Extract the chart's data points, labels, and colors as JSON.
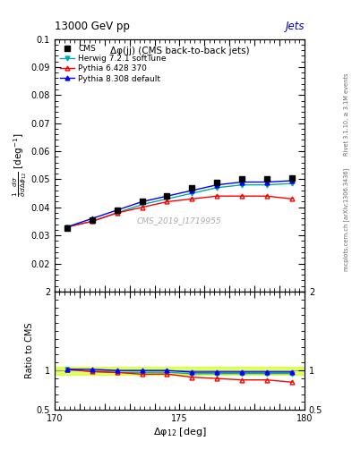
{
  "title_main": "13000 GeV pp",
  "title_right": "Jets",
  "plot_title": "Δφ(jj) (CMS back-to-back jets)",
  "xlabel": "Δφ$_{12}$ [deg]",
  "ylabel_main": "$\\frac{1}{\\bar{\\sigma}}\\frac{d\\sigma}{d\\Delta\\phi_{12}}$ [deg$^{-1}$]",
  "ylabel_ratio": "Ratio to CMS",
  "right_label_top": "Rivet 3.1.10, ≥ 3.1M events",
  "right_label_bottom": "mcplots.cern.ch [arXiv:1306.3436]",
  "watermark": "CMS_2019_I1719955",
  "xmin": 170,
  "xmax": 180,
  "ymin_main": 0.01,
  "ymax_main": 0.1,
  "ymin_ratio": 0.5,
  "ymax_ratio": 2.0,
  "x_data": [
    170.5,
    171.5,
    172.5,
    173.5,
    174.5,
    175.5,
    176.5,
    177.5,
    178.5,
    179.5
  ],
  "cms_data": [
    0.0325,
    0.0355,
    0.039,
    0.042,
    0.044,
    0.047,
    0.049,
    0.05,
    0.05,
    0.0505
  ],
  "herwig_data": [
    0.033,
    0.035,
    0.038,
    0.041,
    0.043,
    0.045,
    0.047,
    0.048,
    0.048,
    0.0485
  ],
  "pythia6_data": [
    0.033,
    0.035,
    0.038,
    0.04,
    0.042,
    0.043,
    0.044,
    0.044,
    0.044,
    0.043
  ],
  "pythia8_data": [
    0.033,
    0.036,
    0.039,
    0.042,
    0.044,
    0.046,
    0.048,
    0.049,
    0.049,
    0.0495
  ],
  "cms_color": "#000000",
  "herwig_color": "#00AAAA",
  "pythia6_color": "#FF0000",
  "pythia8_color": "#0000FF",
  "band_color": "#CCFF00",
  "band_alpha": 0.6,
  "legend_labels": [
    "CMS",
    "Herwig 7.2.1 softTune",
    "Pythia 6.428 370",
    "Pythia 8.308 default"
  ],
  "yticks_main": [
    0.01,
    0.02,
    0.03,
    0.04,
    0.05,
    0.06,
    0.07,
    0.08,
    0.09,
    0.1
  ],
  "ytick_labels_main": [
    "",
    "0.02",
    "0.03",
    "0.04",
    "0.05",
    "0.06",
    "0.07",
    "0.08",
    "0.09",
    "0.1"
  ],
  "yticks_ratio": [
    0.5,
    1.0,
    2.0
  ],
  "xticks_labeled": [
    170,
    175,
    180
  ],
  "title_right_color": "#0000AA"
}
